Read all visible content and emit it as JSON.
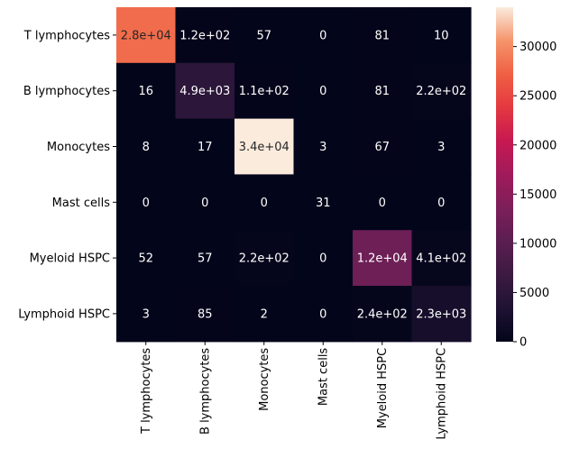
{
  "chart_data": {
    "type": "heatmap",
    "rows": [
      "T lymphocytes",
      "B lymphocytes",
      "Monocytes",
      "Mast cells",
      "Myeloid HSPC",
      "Lymphoid HSPC"
    ],
    "columns": [
      "T lymphocytes",
      "B lymphocytes",
      "Monocytes",
      "Mast cells",
      "Myeloid HSPC",
      "Lymphoid HSPC"
    ],
    "values": [
      [
        28000,
        120,
        57,
        0,
        81,
        10
      ],
      [
        16,
        4900,
        110,
        0,
        81,
        220
      ],
      [
        8,
        17,
        34000,
        3,
        67,
        3
      ],
      [
        0,
        0,
        0,
        31,
        0,
        0
      ],
      [
        52,
        57,
        220,
        0,
        12000,
        410
      ],
      [
        3,
        85,
        2,
        0,
        240,
        2300
      ]
    ],
    "annotations": [
      [
        "2.8e+04",
        "1.2e+02",
        "57",
        "0",
        "81",
        "10"
      ],
      [
        "16",
        "4.9e+03",
        "1.1e+02",
        "0",
        "81",
        "2.2e+02"
      ],
      [
        "8",
        "17",
        "3.4e+04",
        "3",
        "67",
        "3"
      ],
      [
        "0",
        "0",
        "0",
        "31",
        "0",
        "0"
      ],
      [
        "52",
        "57",
        "2.2e+02",
        "0",
        "1.2e+04",
        "4.1e+02"
      ],
      [
        "3",
        "85",
        "2",
        "0",
        "2.4e+02",
        "2.3e+03"
      ]
    ],
    "colormap": "rocket",
    "colorbar": {
      "min": 0,
      "max": 34000,
      "ticks": [
        0,
        5000,
        10000,
        15000,
        20000,
        25000,
        30000
      ],
      "tick_labels": [
        "0",
        "5000",
        "10000",
        "15000",
        "20000",
        "25000",
        "30000"
      ]
    },
    "title": "",
    "xlabel": "",
    "ylabel": ""
  }
}
